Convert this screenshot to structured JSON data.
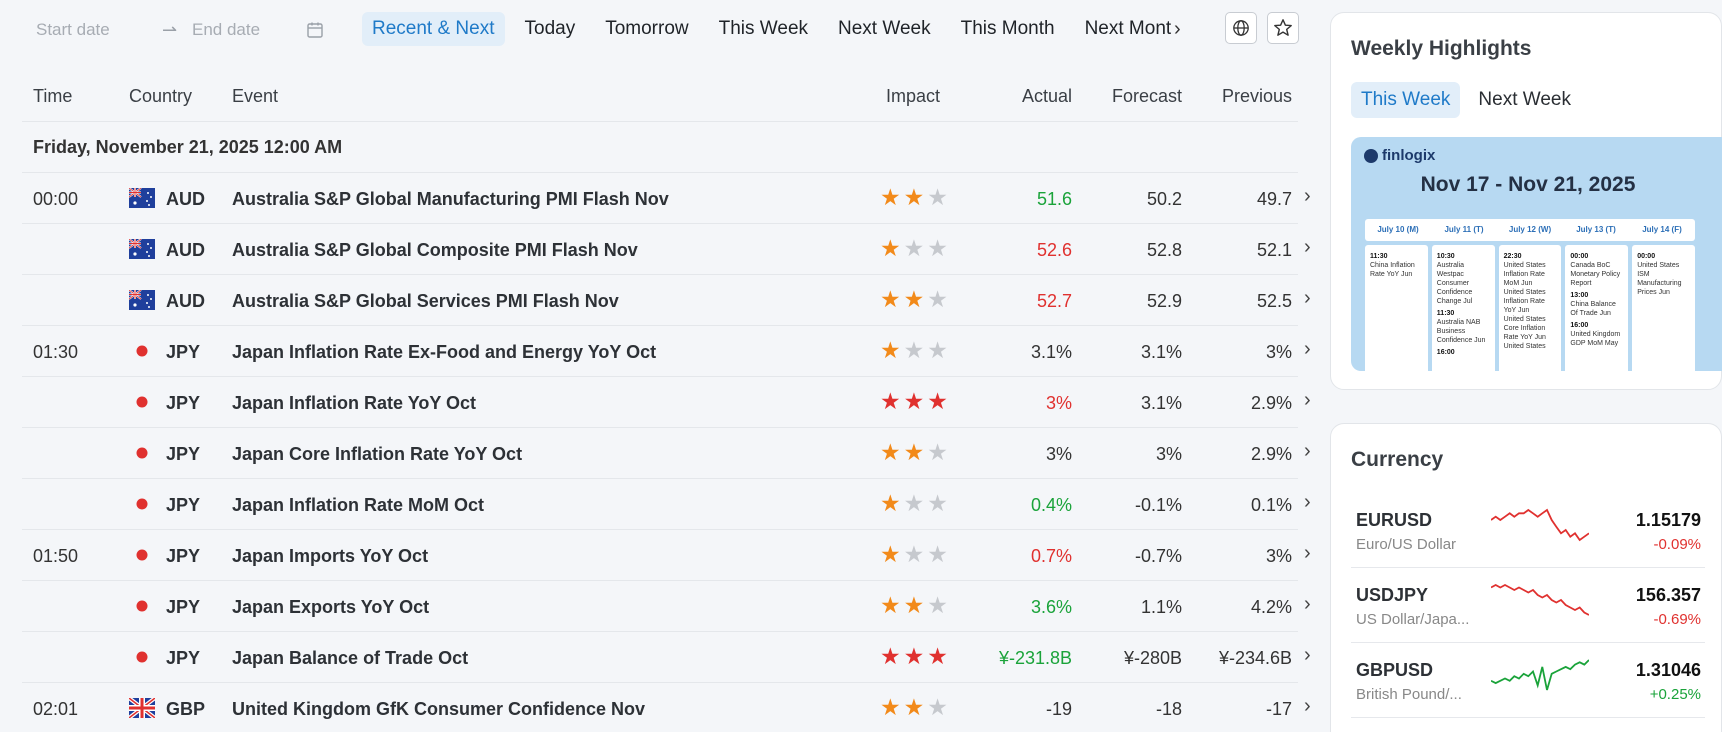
{
  "filters": {
    "start_placeholder": "Start date",
    "end_placeholder": "End date",
    "tabs": [
      "Recent & Next",
      "Today",
      "Tomorrow",
      "This Week",
      "Next Week",
      "This Month",
      "Next Mont"
    ],
    "active_tab": "Recent & Next"
  },
  "table": {
    "headers": {
      "time": "Time",
      "country": "Country",
      "event": "Event",
      "impact": "Impact",
      "actual": "Actual",
      "forecast": "Forecast",
      "previous": "Previous"
    },
    "day_label": "Friday, November 21, 2025 12:00 AM",
    "rows": [
      {
        "time": "00:00",
        "country": "AUD",
        "event": "Australia S&P Global Manufacturing PMI Flash Nov",
        "impact": 2,
        "actual": "51.6",
        "actual_trend": "up",
        "forecast": "50.2",
        "previous": "49.7"
      },
      {
        "time": "",
        "country": "AUD",
        "event": "Australia S&P Global Composite PMI Flash Nov",
        "impact": 1,
        "actual": "52.6",
        "actual_trend": "down",
        "forecast": "52.8",
        "previous": "52.1"
      },
      {
        "time": "",
        "country": "AUD",
        "event": "Australia S&P Global Services PMI Flash Nov",
        "impact": 2,
        "actual": "52.7",
        "actual_trend": "down",
        "forecast": "52.9",
        "previous": "52.5"
      },
      {
        "time": "01:30",
        "country": "JPY",
        "event": "Japan Inflation Rate Ex-Food and Energy YoY Oct",
        "impact": 1,
        "actual": "3.1%",
        "actual_trend": "flat",
        "forecast": "3.1%",
        "previous": "3%"
      },
      {
        "time": "",
        "country": "JPY",
        "event": "Japan Inflation Rate YoY Oct",
        "impact": 3,
        "actual": "3%",
        "actual_trend": "down",
        "forecast": "3.1%",
        "previous": "2.9%"
      },
      {
        "time": "",
        "country": "JPY",
        "event": "Japan Core Inflation Rate YoY Oct",
        "impact": 2,
        "actual": "3%",
        "actual_trend": "flat",
        "forecast": "3%",
        "previous": "2.9%"
      },
      {
        "time": "",
        "country": "JPY",
        "event": "Japan Inflation Rate MoM Oct",
        "impact": 1,
        "actual": "0.4%",
        "actual_trend": "up",
        "forecast": "-0.1%",
        "previous": "0.1%"
      },
      {
        "time": "01:50",
        "country": "JPY",
        "event": "Japan Imports YoY Oct",
        "impact": 1,
        "actual": "0.7%",
        "actual_trend": "down",
        "forecast": "-0.7%",
        "previous": "3%"
      },
      {
        "time": "",
        "country": "JPY",
        "event": "Japan Exports YoY Oct",
        "impact": 2,
        "actual": "3.6%",
        "actual_trend": "up",
        "forecast": "1.1%",
        "previous": "4.2%"
      },
      {
        "time": "",
        "country": "JPY",
        "event": "Japan Balance of Trade Oct",
        "impact": 3,
        "actual": "¥-231.8B",
        "actual_trend": "up",
        "forecast": "¥-280B",
        "previous": "¥-234.6B"
      },
      {
        "time": "02:01",
        "country": "GBP",
        "event": "United Kingdom GfK Consumer Confidence Nov",
        "impact": 2,
        "actual": "-19",
        "actual_trend": "flat",
        "forecast": "-18",
        "previous": "-17"
      }
    ]
  },
  "weekly": {
    "title": "Weekly Highlights",
    "tabs": [
      "This Week",
      "Next Week"
    ],
    "active_tab": "This Week",
    "brand": "finlogix",
    "range": "Nov 17 - Nov 21, 2025",
    "mini_days": [
      "July 10 (M)",
      "July 11 (T)",
      "July 12 (W)",
      "July 13 (T)",
      "July 14 (F)"
    ],
    "mini_events": [
      [
        {
          "t": "11:30",
          "e": "China Inflation Rate YoY Jun"
        }
      ],
      [
        {
          "t": "10:30",
          "e": "Australia Westpac Consumer Confidence Change Jul"
        },
        {
          "t": "11:30",
          "e": "Australia NAB Business Confidence Jun"
        },
        {
          "t": "16:00",
          "e": ""
        }
      ],
      [
        {
          "t": "22:30",
          "e": "United States Inflation Rate MoM Jun"
        },
        {
          "t": "",
          "e": "United States Inflation Rate YoY Jun"
        },
        {
          "t": "",
          "e": "United States Core Inflation Rate YoY Jun"
        },
        {
          "t": "",
          "e": "United States"
        }
      ],
      [
        {
          "t": "00:00",
          "e": "Canada BoC Monetary Policy Report"
        },
        {
          "t": "13:00",
          "e": "China Balance Of Trade Jun"
        },
        {
          "t": "16:00",
          "e": "United Kingdom GDP MoM May"
        }
      ],
      [
        {
          "t": "00:00",
          "e": "United States ISM Manufacturing Prices Jun"
        }
      ]
    ]
  },
  "currency": {
    "title": "Currency",
    "pairs": [
      {
        "symbol": "EURUSD",
        "name": "Euro/US Dollar",
        "price": "1.15179",
        "change": "-0.09%",
        "trend": "down",
        "spark": [
          5,
          4,
          5,
          4,
          3,
          4,
          3,
          3,
          2,
          3,
          4,
          3,
          2,
          5,
          7,
          9,
          8,
          10,
          9,
          11,
          10,
          9
        ]
      },
      {
        "symbol": "USDJPY",
        "name": "US Dollar/Japa...",
        "price": "156.357",
        "change": "-0.69%",
        "trend": "down",
        "spark": [
          3,
          2,
          3,
          2,
          3,
          4,
          3,
          4,
          5,
          4,
          6,
          7,
          6,
          8,
          9,
          8,
          10,
          11,
          12,
          11,
          13,
          14
        ]
      },
      {
        "symbol": "GBPUSD",
        "name": "British Pound/...",
        "price": "1.31046",
        "change": "+0.25%",
        "trend": "up",
        "spark": [
          12,
          13,
          12,
          11,
          12,
          10,
          11,
          9,
          10,
          8,
          14,
          6,
          16,
          9,
          8,
          7,
          6,
          7,
          5,
          4,
          5,
          3
        ]
      }
    ]
  },
  "colors": {
    "up": "#1aa33a",
    "down": "#e0312f",
    "star_orange": "#f28a1a",
    "star_red": "#e0312f",
    "star_gray": "#c6c9ce",
    "accent": "#1f7ac8"
  }
}
